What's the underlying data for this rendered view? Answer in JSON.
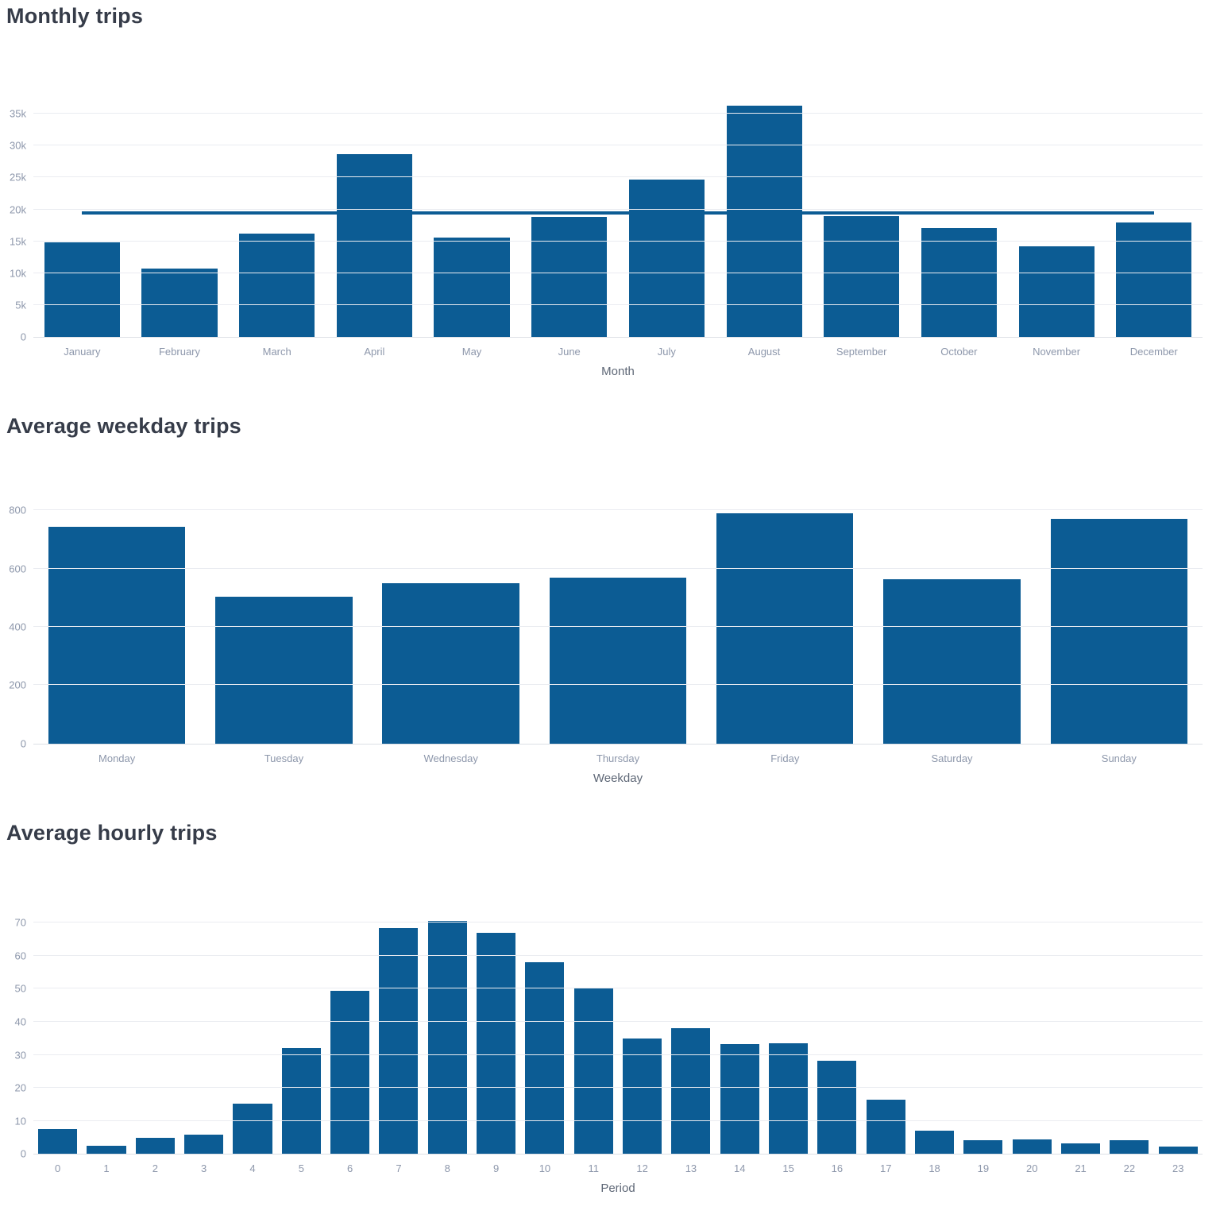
{
  "colors": {
    "bar": "#0c5c94",
    "average_line": "#0c5c94",
    "gridline": "#eaecf1",
    "axis_line": "#dde0e6",
    "tick_label": "#8d97ab",
    "axis_title": "#5e6776",
    "chart_title": "#363c49",
    "background": "#ffffff"
  },
  "chart_data": [
    {
      "type": "bar",
      "title": "Monthly trips",
      "xlabel": "Month",
      "ylabel": "",
      "categories": [
        "January",
        "February",
        "March",
        "April",
        "May",
        "June",
        "July",
        "August",
        "September",
        "October",
        "November",
        "December"
      ],
      "values": [
        14800,
        10800,
        16200,
        28600,
        15600,
        18800,
        24700,
        36200,
        19000,
        17100,
        14200,
        17900
      ],
      "average_line": 19500,
      "ylim": [
        0,
        40300
      ],
      "yticks": [
        0,
        5000,
        10000,
        15000,
        20000,
        25000,
        30000,
        35000
      ],
      "ytick_labels": [
        "0",
        "5k",
        "10k",
        "15k",
        "20k",
        "25k",
        "30k",
        "35k"
      ],
      "grid": true,
      "legend": "none",
      "bar_width_ratio": 0.775
    },
    {
      "type": "bar",
      "title": "Average weekday trips",
      "xlabel": "Weekday",
      "ylabel": "",
      "categories": [
        "Monday",
        "Tuesday",
        "Wednesday",
        "Thursday",
        "Friday",
        "Saturday",
        "Sunday"
      ],
      "values": [
        745,
        505,
        550,
        570,
        790,
        565,
        770
      ],
      "ylim": [
        0,
        870
      ],
      "yticks": [
        0,
        200,
        400,
        600,
        800
      ],
      "ytick_labels": [
        "0",
        "200",
        "400",
        "600",
        "800"
      ],
      "grid": true,
      "legend": "none",
      "bar_width_ratio": 0.82
    },
    {
      "type": "bar",
      "title": "Average hourly trips",
      "xlabel": "Period",
      "ylabel": "",
      "categories": [
        "0",
        "1",
        "2",
        "3",
        "4",
        "5",
        "6",
        "7",
        "8",
        "9",
        "10",
        "11",
        "12",
        "13",
        "14",
        "15",
        "16",
        "17",
        "18",
        "19",
        "20",
        "21",
        "22",
        "23"
      ],
      "values": [
        7.5,
        2.5,
        4.8,
        5.8,
        15.3,
        32,
        49.5,
        68.5,
        70.5,
        67,
        58,
        50,
        35,
        38,
        33.3,
        33.5,
        28.3,
        16.3,
        7,
        4.2,
        4.4,
        3.2,
        4.1,
        2.1
      ],
      "ylim": [
        0,
        78
      ],
      "yticks": [
        0,
        10,
        20,
        30,
        40,
        50,
        60,
        70
      ],
      "ytick_labels": [
        "0",
        "10",
        "20",
        "30",
        "40",
        "50",
        "60",
        "70"
      ],
      "grid": true,
      "legend": "none",
      "bar_width_ratio": 0.8
    }
  ]
}
